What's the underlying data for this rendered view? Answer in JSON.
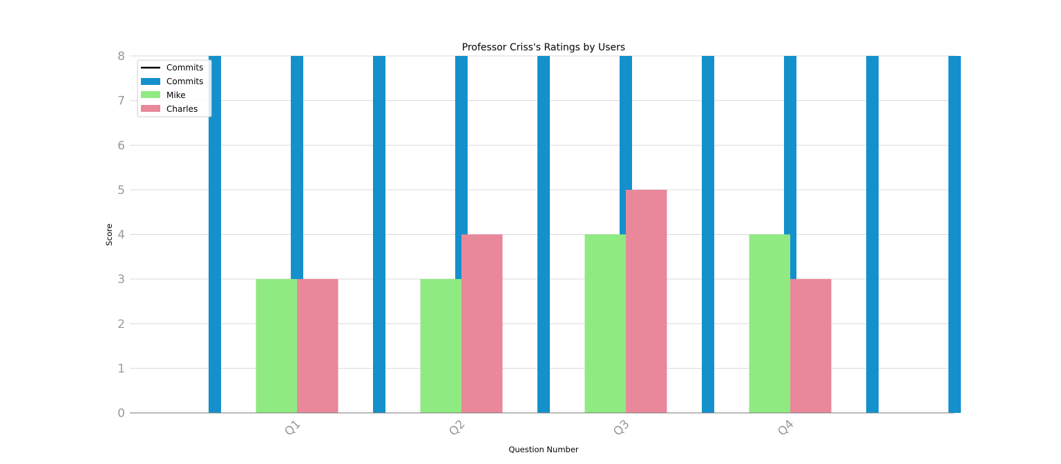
{
  "chart_data": {
    "type": "bar",
    "title": "Professor Criss's Ratings by Users",
    "xlabel": "Question Number",
    "ylabel": "Score",
    "categories": [
      "Q1",
      "Q2",
      "Q3",
      "Q4"
    ],
    "ylim": [
      0,
      8
    ],
    "yticks": [
      "0",
      "1",
      "2",
      "3",
      "4",
      "5",
      "6",
      "7",
      "8"
    ],
    "grid": true,
    "legend_position": "top-left",
    "series": [
      {
        "name": "Mike",
        "color": "#90ea82",
        "values": [
          3,
          3,
          4,
          4
        ]
      },
      {
        "name": "Charles",
        "color": "#e8889a",
        "values": [
          3,
          4,
          5,
          3
        ]
      }
    ],
    "commits_line": {
      "name": "Commits",
      "color": "#000000"
    },
    "commits_bars": {
      "name": "Commits",
      "color": "#1490cc",
      "x": [
        -0.5,
        0.0,
        0.5,
        1.0,
        1.5,
        2.0,
        2.5,
        3.0,
        3.5,
        4.0
      ],
      "values": [
        8,
        8,
        8,
        8,
        8,
        8,
        8,
        8,
        8,
        8
      ]
    },
    "legend": [
      "Commits",
      "Commits",
      "Mike",
      "Charles"
    ]
  }
}
